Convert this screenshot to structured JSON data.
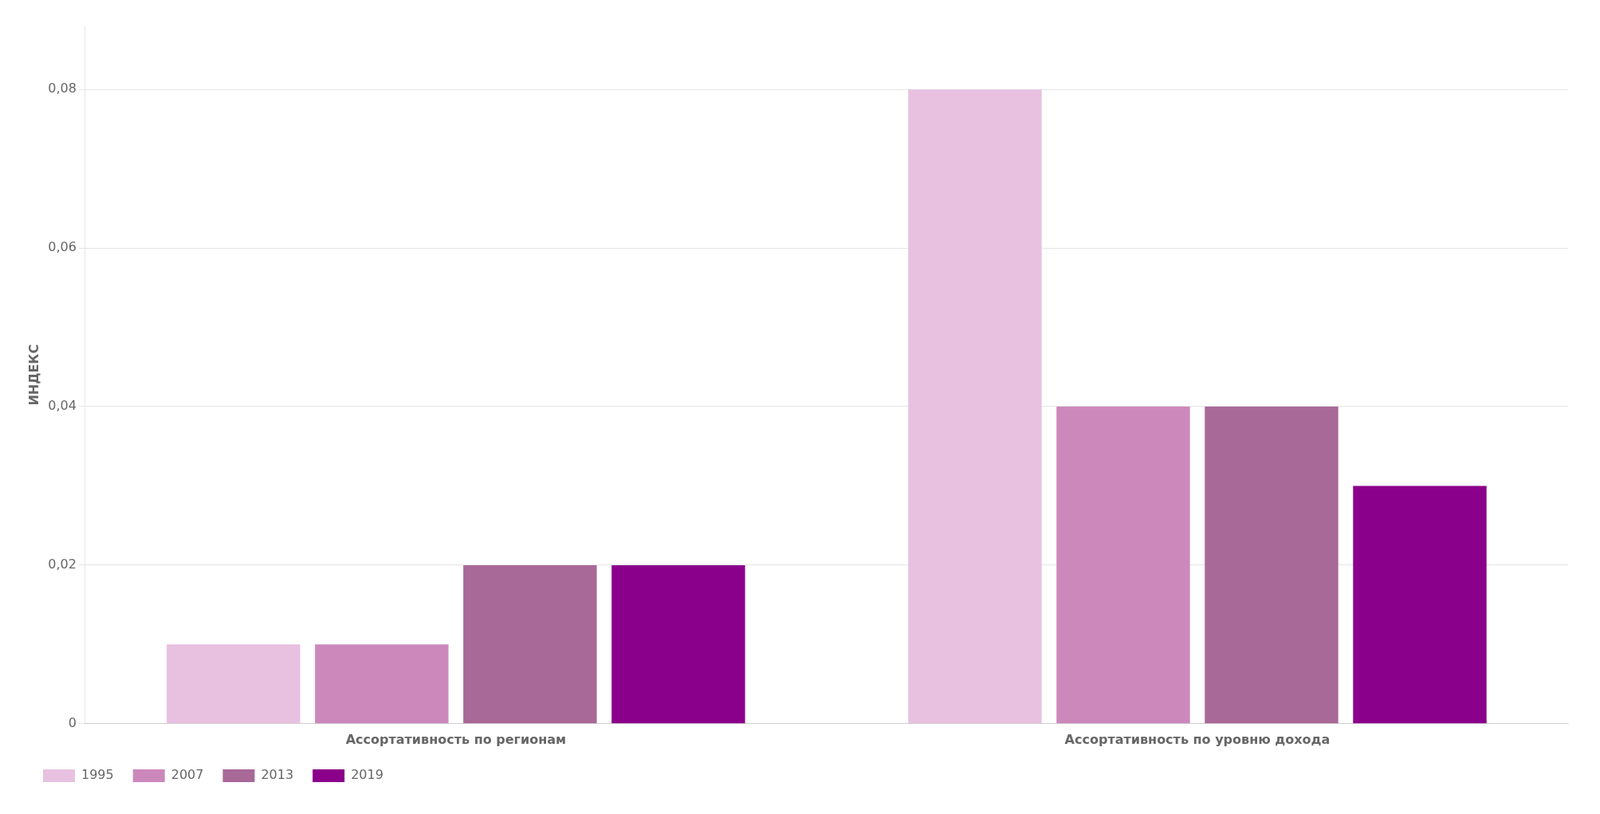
{
  "chart_data": {
    "type": "bar",
    "ylabel": "ИНДЕКС",
    "categories": [
      "Ассортативность по регионам",
      "Ассортативность по уровню дохода"
    ],
    "series": [
      {
        "name": "1995",
        "color": "#e8c0e0",
        "values": [
          0.01,
          0.08
        ]
      },
      {
        "name": "2007",
        "color": "#cc88bb",
        "values": [
          0.01,
          0.04
        ]
      },
      {
        "name": "2013",
        "color": "#a86898",
        "values": [
          0.02,
          0.04
        ]
      },
      {
        "name": "2019",
        "color": "#8b008b",
        "values": [
          0.02,
          0.03
        ]
      }
    ],
    "ylim": [
      0,
      0.088
    ],
    "yticks": [
      0,
      {
        "value": 0.02,
        "label": "0,02"
      },
      {
        "value": 0.04,
        "label": "0,04"
      },
      {
        "value": 0.06,
        "label": "0,06"
      },
      {
        "value": 0.08,
        "label": "0,08"
      }
    ],
    "grid": true,
    "legend": "bottom"
  }
}
